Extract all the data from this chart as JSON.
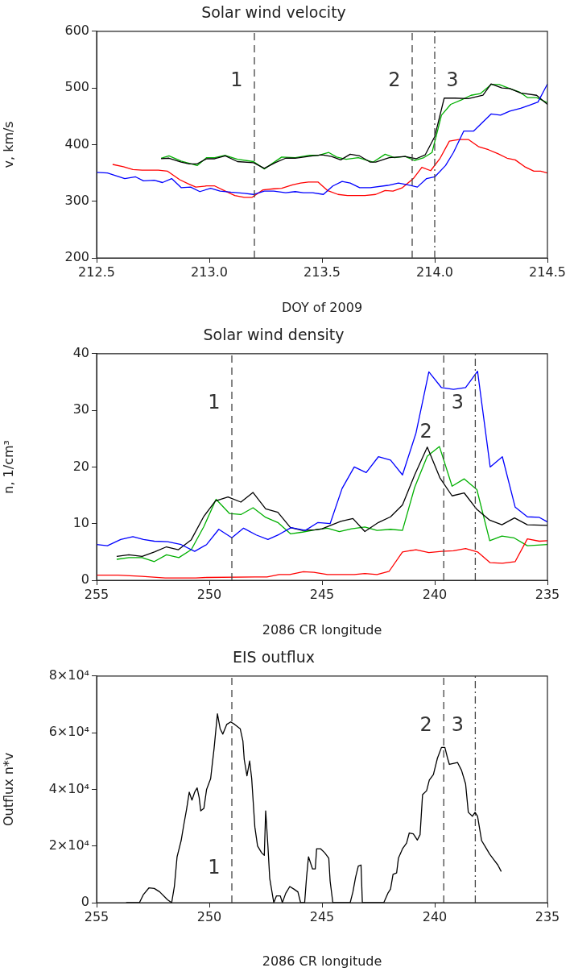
{
  "chart_data": [
    {
      "type": "line",
      "title": "Solar wind velocity",
      "xlabel": "DOY of 2009",
      "ylabel": "v, km/s",
      "xlim": [
        212.5,
        214.5
      ],
      "ylim": [
        200,
        600
      ],
      "xticks": [
        212.5,
        {
          "value": 213,
          "label": "213.0"
        },
        213.5,
        {
          "value": 214,
          "label": "214.0"
        },
        214.5
      ],
      "yticks": [
        200,
        300,
        400,
        500,
        600
      ],
      "series": [
        {
          "color": "#0000ff",
          "x": [
            212.5,
            212.548,
            212.625,
            212.673,
            212.708,
            212.756,
            212.792,
            212.833,
            212.875,
            212.917,
            212.958,
            213.006,
            213.048,
            213.095,
            213.155,
            213.196,
            213.244,
            213.286,
            213.339,
            213.381,
            213.417,
            213.458,
            213.506,
            213.548,
            213.589,
            213.625,
            213.667,
            213.714,
            213.792,
            213.839,
            213.881,
            213.923,
            213.964,
            214.0,
            214.048,
            214.083,
            214.129,
            214.173,
            214.25,
            214.292,
            214.333,
            214.381,
            214.417,
            214.458,
            214.5
          ],
          "values": [
            351,
            350,
            340,
            343,
            336,
            337,
            333,
            340,
            324,
            325,
            317,
            323,
            318,
            316,
            314,
            312,
            318,
            318,
            315,
            317,
            315,
            315,
            312,
            327,
            335,
            332,
            324,
            324,
            328,
            332,
            329,
            325,
            340,
            343,
            363,
            386,
            424,
            424,
            454,
            452,
            459,
            464,
            469,
            475,
            507
          ]
        },
        {
          "color": "#ff0000",
          "x": [
            212.571,
            212.619,
            212.661,
            212.702,
            212.774,
            212.815,
            212.869,
            212.905,
            212.94,
            212.988,
            213.024,
            213.071,
            213.113,
            213.155,
            213.19,
            213.238,
            213.286,
            213.321,
            213.369,
            213.405,
            213.44,
            213.482,
            213.524,
            213.571,
            213.613,
            213.69,
            213.738,
            213.78,
            213.815,
            213.857,
            213.905,
            213.943,
            213.982,
            214.024,
            214.065,
            214.107,
            214.149,
            214.196,
            214.238,
            214.28,
            214.321,
            214.357,
            214.399,
            214.44,
            214.47,
            214.5
          ],
          "values": [
            365,
            361,
            356,
            355,
            355,
            353,
            338,
            331,
            325,
            327,
            327,
            318,
            310,
            307,
            307,
            320,
            322,
            323,
            329,
            332,
            334,
            334,
            319,
            312,
            310,
            310,
            312,
            319,
            318,
            324,
            340,
            360,
            354,
            376,
            406,
            409,
            409,
            396,
            391,
            384,
            376,
            373,
            361,
            353,
            353,
            350
          ]
        },
        {
          "color": "#000000",
          "x": [
            212.786,
            212.821,
            212.875,
            212.911,
            212.946,
            212.988,
            213.024,
            213.071,
            213.125,
            213.196,
            213.244,
            213.292,
            213.339,
            213.381,
            213.458,
            213.5,
            213.542,
            213.583,
            213.625,
            213.667,
            213.714,
            213.738,
            213.798,
            213.869,
            213.917,
            213.958,
            214.0,
            214.042,
            214.089,
            214.149,
            214.214,
            214.25,
            214.298,
            214.333,
            214.381,
            214.452,
            214.5
          ],
          "values": [
            375,
            376,
            369,
            366,
            366,
            375,
            375,
            380,
            370,
            368,
            358,
            368,
            376,
            376,
            380,
            382,
            379,
            373,
            383,
            380,
            369,
            369,
            377,
            379,
            375,
            382,
            414,
            482,
            482,
            481,
            487,
            507,
            500,
            499,
            491,
            487,
            471
          ]
        },
        {
          "color": "#00b000",
          "x": [
            212.786,
            212.821,
            212.875,
            212.946,
            212.988,
            213.024,
            213.071,
            213.125,
            213.196,
            213.244,
            213.321,
            213.381,
            213.446,
            213.482,
            213.53,
            213.565,
            213.607,
            213.661,
            213.726,
            213.78,
            213.821,
            213.869,
            213.911,
            213.952,
            213.988,
            214.03,
            214.071,
            214.119,
            214.161,
            214.202,
            214.25,
            214.286,
            214.333,
            214.375,
            214.411,
            214.452,
            214.5
          ],
          "values": [
            376,
            380,
            371,
            363,
            377,
            377,
            381,
            374,
            370,
            357,
            378,
            377,
            381,
            381,
            386,
            378,
            374,
            377,
            369,
            383,
            377,
            379,
            372,
            377,
            386,
            452,
            471,
            479,
            487,
            490,
            506,
            506,
            499,
            493,
            483,
            483,
            474
          ]
        }
      ],
      "ref_lines": [
        {
          "axis": "x",
          "value": 213.2,
          "color": "#444444",
          "line_style": "dashed"
        },
        {
          "axis": "x",
          "value": 213.9,
          "color": "#444444",
          "line_style": "dashed"
        },
        {
          "axis": "x",
          "value": 214.0,
          "color": "#444444",
          "line_style": "dashdot"
        }
      ],
      "annotations": [
        "1",
        "2",
        "3"
      ]
    },
    {
      "type": "line",
      "title": "Solar wind density",
      "xlabel": "2086 CR longitude",
      "ylabel": "n, 1/cm³",
      "xlim": [
        255,
        235
      ],
      "ylim": [
        0,
        40
      ],
      "xticks": [
        255,
        250,
        245,
        240,
        235
      ],
      "yticks": [
        0,
        10,
        20,
        30,
        40
      ],
      "series": [
        {
          "color": "#0000ff",
          "x": [
            255,
            254.52,
            253.93,
            253.39,
            252.92,
            252.44,
            251.85,
            251.25,
            250.65,
            250.12,
            249.58,
            249.0,
            248.48,
            247.92,
            247.4,
            246.9,
            246.37,
            245.74,
            245.18,
            244.64,
            244.11,
            243.57,
            243.04,
            242.5,
            241.96,
            241.43,
            240.83,
            240.26,
            239.7,
            239.17,
            238.63,
            238.1,
            237.54,
            237.0,
            236.43,
            235.89,
            235.36,
            235
          ],
          "values": [
            6.3,
            6.1,
            7.2,
            7.7,
            7.2,
            6.9,
            6.8,
            6.3,
            5.1,
            6.3,
            9.0,
            7.5,
            9.2,
            8.0,
            7.2,
            8.1,
            9.3,
            8.8,
            10.2,
            10.0,
            16.2,
            20.0,
            19.0,
            21.8,
            21.2,
            18.6,
            26.0,
            36.8,
            34.0,
            33.7,
            34.0,
            36.9,
            20.0,
            21.8,
            12.9,
            11.2,
            11.1,
            10.3
          ]
        },
        {
          "color": "#ff0000",
          "x": [
            255,
            254.05,
            252.98,
            251.96,
            250.6,
            250.12,
            247.98,
            247.44,
            246.9,
            246.43,
            245.83,
            245.36,
            244.76,
            244.29,
            243.57,
            243.1,
            242.56,
            242.02,
            241.43,
            240.83,
            240.26,
            239.7,
            239.17,
            238.63,
            238.1,
            237.54,
            237.0,
            236.43,
            235.89,
            235.36,
            235
          ],
          "values": [
            0.9,
            0.9,
            0.7,
            0.4,
            0.4,
            0.5,
            0.6,
            0.6,
            1.0,
            1.0,
            1.5,
            1.4,
            1.0,
            1.0,
            1.0,
            1.2,
            1.0,
            1.6,
            5.0,
            5.4,
            4.9,
            5.1,
            5.2,
            5.6,
            5.0,
            3.1,
            3.0,
            3.3,
            7.3,
            6.9,
            7.0
          ]
        },
        {
          "color": "#000000",
          "x": [
            254.11,
            253.57,
            252.98,
            252.44,
            251.9,
            251.37,
            250.81,
            250.24,
            249.73,
            249.17,
            248.6,
            248.06,
            247.5,
            246.96,
            246.4,
            245.87,
            245.3,
            245,
            244.17,
            243.63,
            243.1,
            242.5,
            241.96,
            241.43,
            240.89,
            240.33,
            239.76,
            239.23,
            238.69,
            238.15,
            237.56,
            237.02,
            236.46,
            235.89,
            235
          ],
          "values": [
            4.2,
            4.5,
            4.2,
            5.0,
            5.9,
            5.4,
            7.1,
            11.3,
            14.0,
            14.7,
            13.8,
            15.5,
            12.6,
            12.0,
            9.3,
            8.8,
            8.9,
            9.1,
            10.4,
            10.9,
            8.6,
            10.2,
            11.2,
            13.3,
            18.6,
            23.5,
            18.0,
            14.9,
            15.4,
            12.6,
            10.6,
            9.8,
            11.0,
            9.8,
            9.7
          ]
        },
        {
          "color": "#00b000",
          "x": [
            254.11,
            253.57,
            252.98,
            252.44,
            251.9,
            251.35,
            250.8,
            250.24,
            249.7,
            249.11,
            248.6,
            248.06,
            247.5,
            246.96,
            246.4,
            245.87,
            245.3,
            244.76,
            244.23,
            243.69,
            243.1,
            242.56,
            241.96,
            241.43,
            240.89,
            240.33,
            239.79,
            239.23,
            238.69,
            238.13,
            237.56,
            237.02,
            236.49,
            235.89,
            235
          ],
          "values": [
            3.7,
            4.0,
            4.0,
            3.3,
            4.5,
            4.0,
            5.4,
            9.5,
            14.3,
            11.8,
            11.6,
            12.8,
            11.1,
            10.2,
            8.2,
            8.5,
            8.9,
            9.2,
            8.6,
            9.1,
            9.4,
            8.8,
            9.0,
            8.8,
            16.4,
            21.9,
            23.6,
            16.6,
            17.9,
            16.0,
            7.0,
            7.8,
            7.5,
            6.1,
            6.3
          ]
        }
      ],
      "ref_lines": [
        {
          "axis": "x",
          "value": 249.0,
          "color": "#444444",
          "line_style": "dashed"
        },
        {
          "axis": "x",
          "value": 239.6,
          "color": "#444444",
          "line_style": "dashed"
        },
        {
          "axis": "x",
          "value": 238.2,
          "color": "#444444",
          "line_style": "dashdot"
        }
      ],
      "annotations": [
        "1",
        "2",
        "3"
      ]
    },
    {
      "type": "line",
      "title": "EIS outflux",
      "xlabel": "2086 CR longitude",
      "ylabel": "Outflux n*v",
      "xlim": [
        255,
        235
      ],
      "ylim": [
        0,
        80000
      ],
      "xticks": [
        255,
        250,
        245,
        240,
        235
      ],
      "yticks": [
        0,
        {
          "value": 20000,
          "label": "2×10⁴"
        },
        {
          "value": 40000,
          "label": "4×10⁴"
        },
        {
          "value": 60000,
          "label": "6×10⁴"
        },
        {
          "value": 80000,
          "label": "8×10⁴"
        }
      ],
      "series": [
        {
          "color": "#000000",
          "x": [
            253.69,
            253.1,
            252.92,
            252.68,
            252.44,
            252.2,
            251.85,
            251.67,
            251.55,
            251.43,
            251.25,
            251.13,
            251.01,
            250.89,
            250.77,
            250.65,
            250.54,
            250.45,
            250.38,
            250.24,
            250.12,
            249.94,
            249.88,
            249.79,
            249.64,
            249.52,
            249.4,
            249.23,
            249.05,
            248.87,
            248.63,
            248.51,
            248.45,
            248.33,
            248.21,
            248.12,
            247.98,
            247.86,
            247.68,
            247.56,
            247.5,
            247.4,
            247.32,
            247.14,
            247.02,
            246.85,
            246.76,
            246.61,
            246.43,
            246.25,
            246.07,
            245.95,
            245.77,
            245.69,
            245.6,
            245.42,
            245.3,
            245.24,
            245.06,
            244.88,
            244.7,
            244.64,
            244.52,
            243.75,
            243.63,
            243.51,
            243.39,
            243.27,
            243.21,
            242.26,
            242.08,
            241.96,
            241.85,
            241.69,
            241.61,
            241.43,
            241.25,
            241.13,
            240.95,
            240.77,
            240.65,
            240.54,
            240.36,
            240.24,
            240.06,
            239.88,
            239.7,
            239.55,
            239.43,
            239.35,
            238.99,
            238.81,
            238.63,
            238.51,
            238.33,
            238.21,
            238.1,
            237.92,
            237.74,
            237.56,
            237.38,
            237.2,
            237.05
          ],
          "values": [
            0,
            0,
            2900,
            5200,
            5000,
            3800,
            1000,
            0,
            5700,
            16200,
            21900,
            27600,
            32900,
            39000,
            36200,
            39000,
            40500,
            37100,
            32400,
            33300,
            40000,
            43800,
            48100,
            54300,
            66700,
            61400,
            59500,
            62900,
            63800,
            62900,
            61400,
            57100,
            50500,
            44800,
            50000,
            43800,
            26700,
            20000,
            17600,
            16700,
            32400,
            20000,
            8600,
            0,
            2400,
            2400,
            0,
            3300,
            5700,
            4800,
            3800,
            0,
            0,
            8600,
            16200,
            11900,
            11900,
            19000,
            19000,
            17600,
            15700,
            7600,
            0,
            0,
            3800,
            9000,
            12900,
            13300,
            0,
            0,
            3300,
            4800,
            10000,
            10500,
            15700,
            19000,
            21000,
            24600,
            24300,
            22100,
            24000,
            38100,
            39500,
            43300,
            45200,
            51000,
            54800,
            54800,
            51000,
            48800,
            49500,
            46700,
            41900,
            31900,
            30500,
            31900,
            30500,
            21900,
            19500,
            17100,
            15200,
            13300,
            11000
          ]
        }
      ],
      "ref_lines": [
        {
          "axis": "x",
          "value": 249.0,
          "color": "#444444",
          "line_style": "dashed"
        },
        {
          "axis": "x",
          "value": 239.6,
          "color": "#444444",
          "line_style": "dashed"
        },
        {
          "axis": "x",
          "value": 238.2,
          "color": "#444444",
          "line_style": "dashdot"
        }
      ],
      "annotations": [
        "1",
        "2",
        "3"
      ]
    }
  ]
}
